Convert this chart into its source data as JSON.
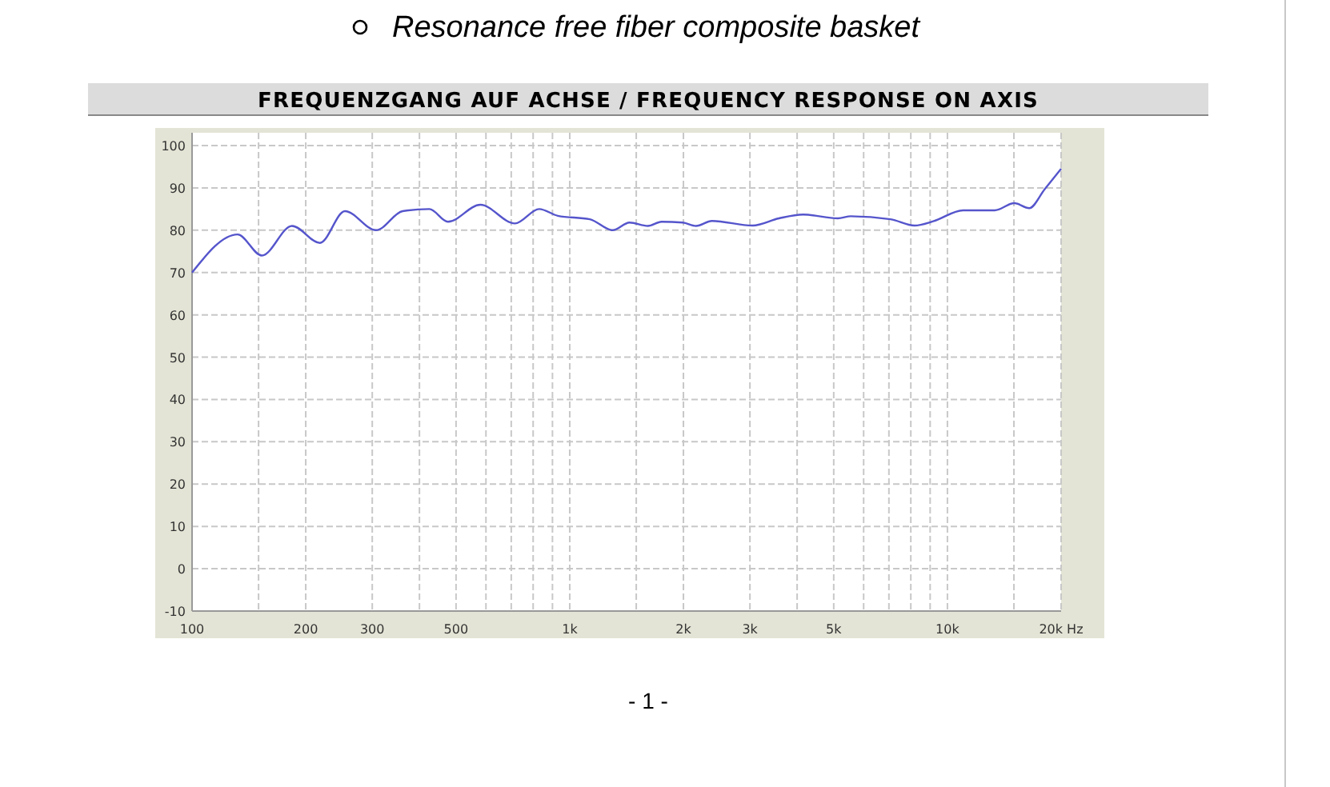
{
  "chart_data": {
    "type": "line",
    "title": "FREQUENZGANG AUF ACHSE / FREQUENCY RESPONSE ON AXIS",
    "annotations": [
      "Resonance free fiber composite basket",
      "- 1 -"
    ],
    "log": "x",
    "grid": true,
    "marker": "none",
    "line_style": "solid",
    "xlim": [
      100,
      20000
    ],
    "ylim": [
      -10,
      100
    ],
    "xticks": [
      100,
      {
        "value": 150,
        "label": null
      },
      200,
      300,
      {
        "value": 400,
        "label": null
      },
      500,
      {
        "value": 600,
        "label": null
      },
      {
        "value": 700,
        "label": null
      },
      {
        "value": 800,
        "label": null
      },
      {
        "value": 900,
        "label": null
      },
      {
        "value": 1000,
        "label": "1k"
      },
      {
        "value": 1500,
        "label": null
      },
      {
        "value": 2000,
        "label": "2k"
      },
      {
        "value": 3000,
        "label": "3k"
      },
      {
        "value": 4000,
        "label": null
      },
      {
        "value": 5000,
        "label": "5k"
      },
      {
        "value": 6000,
        "label": null
      },
      {
        "value": 7000,
        "label": null
      },
      {
        "value": 8000,
        "label": null
      },
      {
        "value": 9000,
        "label": null
      },
      {
        "value": 10000,
        "label": "10k"
      },
      {
        "value": 15000,
        "label": null
      },
      {
        "value": 20000,
        "label": "20k Hz"
      }
    ],
    "yticks": [
      -10,
      0,
      10,
      20,
      30,
      40,
      50,
      60,
      70,
      80,
      90,
      100
    ],
    "series": [
      {
        "color": "#5555cc",
        "x": [
          100,
          132,
          153,
          184,
          218,
          254,
          307,
          361,
          425,
          476,
          580,
          716,
          830,
          930,
          1130,
          1300,
          1440,
          1610,
          1750,
          1990,
          2160,
          2380,
          3050,
          3580,
          4150,
          5130,
          5550,
          7070,
          8180,
          9170,
          11000,
          13340,
          15030,
          16460,
          18100,
          20000
        ],
        "values": [
          70,
          79,
          74,
          81,
          77,
          84.5,
          80,
          84.5,
          85,
          82,
          86,
          81.6,
          85,
          83.4,
          82.6,
          80,
          81.8,
          81,
          82,
          81.8,
          81,
          82.2,
          81.1,
          82.8,
          83.7,
          82.8,
          83.3,
          82.6,
          81.1,
          82.1,
          84.7,
          84.7,
          86.4,
          85.2,
          89.7,
          94.5
        ]
      }
    ]
  }
}
